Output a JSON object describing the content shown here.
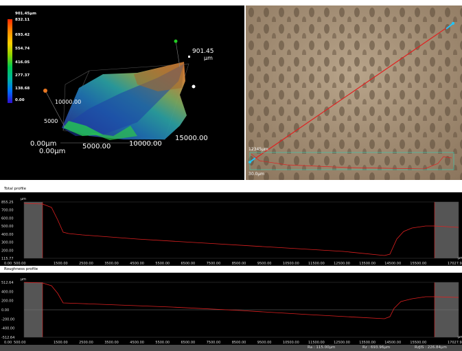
{
  "view3d": {
    "scale_values": [
      "901.45µm",
      "832.11",
      "693.42",
      "554.74",
      "416.05",
      "277.37",
      "138.68",
      "0.00"
    ],
    "z_max_value": "901.45",
    "z_unit": "µm",
    "y_mid": "10000.00",
    "y_low": "5000",
    "origin_y": "0.00µm",
    "origin_x": "0.00µm",
    "x_mid": "5000.00",
    "x_mid2": "10000.00",
    "x_max": "15000.00",
    "markers": {
      "orange": "#e87722",
      "green": "#22cc22",
      "white": "#ffffff"
    }
  },
  "camera": {
    "label_start": "12345µm",
    "label_bottom": "30.0µm"
  },
  "total_profile": {
    "title": "Total profile",
    "unit": "µm",
    "y_ticks": [
      "855.25",
      "700.00",
      "600.00",
      "500.00",
      "400.00",
      "300.00",
      "200.00",
      "115.77"
    ],
    "x_ticks": [
      "0.00",
      "500.00",
      "1500.00",
      "2500.00",
      "3500.00",
      "4500.00",
      "5500.00",
      "6500.00",
      "7500.00",
      "8500.00",
      "9500.00",
      "10500.00",
      "11500.00",
      "12500.00",
      "13500.00",
      "14500.00",
      "15500.00"
    ],
    "x_end": "17027.9",
    "x_unit": "µm"
  },
  "roughness_profile": {
    "title": "Roughness profile",
    "unit": "µm",
    "y_ticks": [
      "512.64",
      "400.00",
      "200.00",
      "0.00",
      "-200.00",
      "-400.00",
      "-512.64"
    ],
    "x_ticks": [
      "0.00",
      "500.00",
      "1500.00",
      "2500.00",
      "3500.00",
      "4500.00",
      "5500.00",
      "6500.00",
      "7500.00",
      "8500.00",
      "9500.00",
      "10500.00",
      "11500.00",
      "12500.00",
      "13500.00",
      "14500.00",
      "15500.00"
    ],
    "x_end": "17027.9",
    "x_unit": "µm"
  },
  "status": {
    "ra": "Ra : 115.00µm",
    "rz": "Rz : 693.96µm",
    "rzjis": "RzJIS : 226.84µm"
  },
  "colors": {
    "profile_line": "#e02020",
    "crosshair": "#1ec8ff",
    "grid": "#333333"
  }
}
